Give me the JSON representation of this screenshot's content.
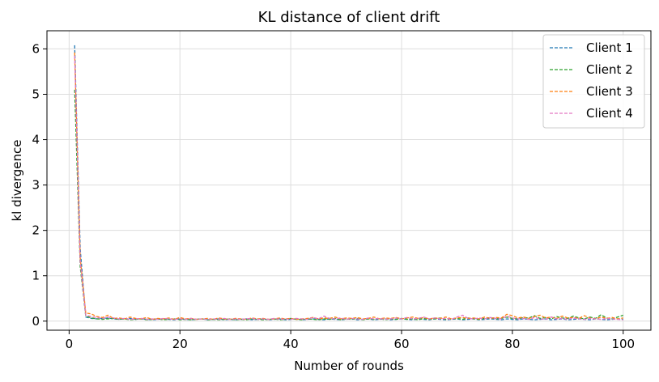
{
  "chart_data": {
    "type": "line",
    "title": "KL distance of client drift",
    "xlabel": "Number of rounds",
    "ylabel": "kl divergence",
    "xlim": [
      -4,
      105
    ],
    "ylim": [
      -0.2,
      6.4
    ],
    "xticks": [
      0,
      20,
      40,
      60,
      80,
      100
    ],
    "yticks": [
      0,
      1,
      2,
      3,
      4,
      5,
      6
    ],
    "grid": true,
    "legend_position": "top-right",
    "line_style": "dashed",
    "x": [
      1,
      2,
      3,
      4,
      5,
      6,
      7,
      8,
      9,
      10,
      11,
      12,
      13,
      14,
      15,
      16,
      17,
      18,
      19,
      20,
      21,
      22,
      23,
      24,
      25,
      26,
      27,
      28,
      29,
      30,
      31,
      32,
      33,
      34,
      35,
      36,
      37,
      38,
      39,
      40,
      41,
      42,
      43,
      44,
      45,
      46,
      47,
      48,
      49,
      50,
      51,
      52,
      53,
      54,
      55,
      56,
      57,
      58,
      59,
      60,
      61,
      62,
      63,
      64,
      65,
      66,
      67,
      68,
      69,
      70,
      71,
      72,
      73,
      74,
      75,
      76,
      77,
      78,
      79,
      80,
      81,
      82,
      83,
      84,
      85,
      86,
      87,
      88,
      89,
      90,
      91,
      92,
      93,
      94,
      95,
      96,
      97,
      98,
      99,
      100
    ],
    "series": [
      {
        "name": "Client 1",
        "color": "#1f77b4",
        "values": [
          6.08,
          1.6,
          0.09,
          0.06,
          0.05,
          0.06,
          0.07,
          0.05,
          0.04,
          0.05,
          0.06,
          0.04,
          0.05,
          0.04,
          0.03,
          0.04,
          0.05,
          0.04,
          0.03,
          0.05,
          0.04,
          0.03,
          0.04,
          0.05,
          0.03,
          0.04,
          0.05,
          0.03,
          0.04,
          0.03,
          0.04,
          0.05,
          0.03,
          0.04,
          0.05,
          0.03,
          0.04,
          0.05,
          0.03,
          0.04,
          0.05,
          0.03,
          0.04,
          0.05,
          0.04,
          0.03,
          0.05,
          0.04,
          0.03,
          0.04,
          0.05,
          0.03,
          0.04,
          0.05,
          0.03,
          0.04,
          0.05,
          0.03,
          0.04,
          0.05,
          0.04,
          0.03,
          0.05,
          0.04,
          0.03,
          0.05,
          0.04,
          0.03,
          0.04,
          0.05,
          0.03,
          0.04,
          0.05,
          0.03,
          0.04,
          0.05,
          0.04,
          0.03,
          0.05,
          0.04,
          0.03,
          0.05,
          0.04,
          0.03,
          0.04,
          0.05,
          0.03,
          0.04,
          0.05,
          0.03,
          0.04,
          0.05,
          0.04,
          0.03,
          0.05,
          0.04,
          0.03,
          0.04,
          0.05,
          0.04
        ]
      },
      {
        "name": "Client 2",
        "color": "#2ca02c",
        "values": [
          5.1,
          1.2,
          0.11,
          0.07,
          0.05,
          0.04,
          0.05,
          0.06,
          0.04,
          0.05,
          0.03,
          0.04,
          0.05,
          0.03,
          0.04,
          0.05,
          0.03,
          0.04,
          0.05,
          0.03,
          0.04,
          0.03,
          0.04,
          0.05,
          0.03,
          0.04,
          0.03,
          0.04,
          0.05,
          0.03,
          0.04,
          0.03,
          0.05,
          0.04,
          0.03,
          0.04,
          0.05,
          0.03,
          0.04,
          0.06,
          0.04,
          0.03,
          0.05,
          0.04,
          0.03,
          0.05,
          0.04,
          0.06,
          0.03,
          0.05,
          0.04,
          0.06,
          0.03,
          0.05,
          0.04,
          0.06,
          0.03,
          0.05,
          0.04,
          0.06,
          0.04,
          0.05,
          0.03,
          0.06,
          0.04,
          0.05,
          0.07,
          0.04,
          0.05,
          0.06,
          0.04,
          0.07,
          0.05,
          0.04,
          0.06,
          0.08,
          0.05,
          0.06,
          0.09,
          0.06,
          0.05,
          0.08,
          0.07,
          0.12,
          0.06,
          0.08,
          0.05,
          0.1,
          0.07,
          0.06,
          0.11,
          0.07,
          0.05,
          0.09,
          0.06,
          0.14,
          0.07,
          0.05,
          0.09,
          0.13
        ]
      },
      {
        "name": "Client 3",
        "color": "#ff7f0e",
        "values": [
          5.92,
          1.4,
          0.18,
          0.16,
          0.1,
          0.08,
          0.13,
          0.06,
          0.07,
          0.05,
          0.09,
          0.06,
          0.05,
          0.08,
          0.04,
          0.06,
          0.05,
          0.07,
          0.04,
          0.08,
          0.05,
          0.06,
          0.04,
          0.05,
          0.06,
          0.04,
          0.07,
          0.05,
          0.04,
          0.06,
          0.05,
          0.04,
          0.07,
          0.05,
          0.06,
          0.04,
          0.05,
          0.07,
          0.05,
          0.06,
          0.04,
          0.05,
          0.06,
          0.08,
          0.05,
          0.07,
          0.06,
          0.09,
          0.05,
          0.07,
          0.06,
          0.08,
          0.05,
          0.06,
          0.09,
          0.05,
          0.07,
          0.06,
          0.08,
          0.05,
          0.07,
          0.09,
          0.06,
          0.08,
          0.05,
          0.07,
          0.06,
          0.09,
          0.05,
          0.07,
          0.08,
          0.06,
          0.07,
          0.05,
          0.09,
          0.06,
          0.08,
          0.07,
          0.15,
          0.12,
          0.07,
          0.09,
          0.06,
          0.1,
          0.13,
          0.07,
          0.09,
          0.06,
          0.11,
          0.07,
          0.08,
          0.06,
          0.12,
          0.07,
          0.05,
          0.09,
          0.06,
          0.08,
          0.05,
          0.07
        ]
      },
      {
        "name": "Client 4",
        "color": "#e377c2",
        "values": [
          5.85,
          1.3,
          0.13,
          0.1,
          0.08,
          0.06,
          0.09,
          0.07,
          0.05,
          0.06,
          0.04,
          0.05,
          0.06,
          0.04,
          0.05,
          0.04,
          0.06,
          0.05,
          0.04,
          0.05,
          0.04,
          0.06,
          0.04,
          0.05,
          0.04,
          0.05,
          0.04,
          0.06,
          0.04,
          0.05,
          0.04,
          0.05,
          0.06,
          0.04,
          0.05,
          0.04,
          0.06,
          0.04,
          0.05,
          0.04,
          0.06,
          0.05,
          0.04,
          0.08,
          0.05,
          0.11,
          0.06,
          0.05,
          0.07,
          0.04,
          0.06,
          0.05,
          0.04,
          0.07,
          0.05,
          0.06,
          0.04,
          0.05,
          0.07,
          0.05,
          0.08,
          0.05,
          0.06,
          0.09,
          0.05,
          0.07,
          0.05,
          0.06,
          0.04,
          0.09,
          0.13,
          0.06,
          0.05,
          0.07,
          0.05,
          0.08,
          0.06,
          0.05,
          0.11,
          0.07,
          0.05,
          0.06,
          0.04,
          0.08,
          0.05,
          0.04,
          0.09,
          0.05,
          0.06,
          0.04,
          0.07,
          0.05,
          0.04,
          0.06,
          0.05,
          0.04,
          0.06,
          0.05,
          0.04,
          0.03
        ]
      }
    ]
  }
}
